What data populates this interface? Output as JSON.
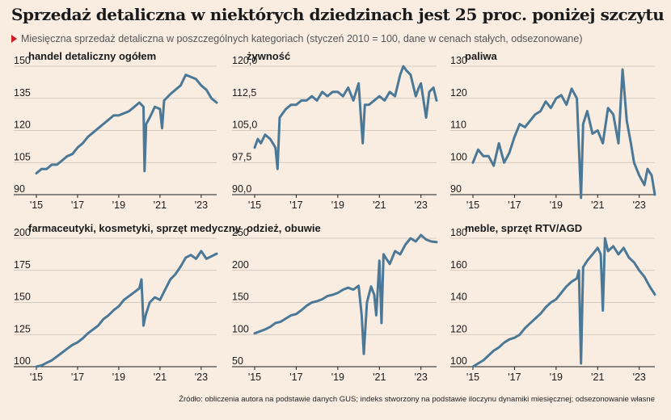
{
  "title": "Sprzedaż detaliczna w niektórych dziedzinach jest 25 proc. poniżej szczytu",
  "subtitle": "Miesięczna sprzedaż detaliczna w poszczególnych kategoriach (styczeń 2010 = 100, dane w cenach stałych, odsezonowane)",
  "source": "Źródło: obliczenia autora na podstawie danych GUS; indeks stworzony na podstawie iloczynu dynamiki miesięcznej; odsezonowanie własne",
  "colors": {
    "line": "#4a7896",
    "background": "#f9ede2",
    "accent": "#c8201e"
  },
  "chart_data": [
    {
      "type": "line",
      "title": "handel detaliczny ogółem",
      "x_tick_labels": [
        "'15",
        "'17",
        "'19",
        "'21",
        "'23"
      ],
      "x_ticks": [
        2015,
        2017,
        2019,
        2021,
        2023
      ],
      "xlim": [
        2015,
        2023.75
      ],
      "y_tick_labels": [
        "90",
        "105",
        "120",
        "135",
        "150"
      ],
      "y_ticks": [
        90,
        105,
        120,
        135,
        150
      ],
      "ylim": [
        90,
        150
      ],
      "x": [
        2015.0,
        2015.25,
        2015.5,
        2015.75,
        2016.0,
        2016.25,
        2016.5,
        2016.75,
        2017.0,
        2017.25,
        2017.5,
        2017.75,
        2018.0,
        2018.25,
        2018.5,
        2018.75,
        2019.0,
        2019.25,
        2019.5,
        2019.75,
        2020.0,
        2020.2,
        2020.25,
        2020.33,
        2020.5,
        2020.75,
        2021.0,
        2021.1,
        2021.2,
        2021.3,
        2021.5,
        2021.75,
        2022.0,
        2022.25,
        2022.5,
        2022.75,
        2023.0,
        2023.25,
        2023.5,
        2023.75
      ],
      "y": [
        100,
        102,
        102,
        104,
        104,
        106,
        108,
        109,
        112,
        114,
        117,
        119,
        121,
        123,
        125,
        127,
        127,
        128,
        129,
        131,
        133,
        131,
        101,
        123,
        126,
        131,
        130,
        121,
        134,
        135,
        137,
        139,
        141,
        146,
        145,
        144,
        141,
        139,
        135,
        133
      ]
    },
    {
      "type": "line",
      "title": "żywność",
      "x_tick_labels": [
        "'15",
        "'17",
        "'19",
        "'21",
        "'23"
      ],
      "x_ticks": [
        2015,
        2017,
        2019,
        2021,
        2023
      ],
      "xlim": [
        2015,
        2023.75
      ],
      "y_tick_labels": [
        "90,0",
        "97,5",
        "105,0",
        "112,5",
        "120,0"
      ],
      "y_ticks": [
        90,
        97.5,
        105,
        112.5,
        120
      ],
      "ylim": [
        90,
        120
      ],
      "x": [
        2015.0,
        2015.15,
        2015.3,
        2015.5,
        2015.75,
        2016.0,
        2016.1,
        2016.2,
        2016.35,
        2016.5,
        2016.75,
        2017.0,
        2017.25,
        2017.5,
        2017.75,
        2018.0,
        2018.25,
        2018.5,
        2018.75,
        2019.0,
        2019.25,
        2019.5,
        2019.75,
        2020.0,
        2020.1,
        2020.2,
        2020.3,
        2020.5,
        2020.75,
        2021.0,
        2021.25,
        2021.5,
        2021.75,
        2022.0,
        2022.15,
        2022.3,
        2022.5,
        2022.75,
        2022.9,
        2023.0,
        2023.25,
        2023.4,
        2023.6,
        2023.75
      ],
      "y": [
        101,
        103,
        102,
        104,
        103,
        101,
        96,
        108,
        109,
        110,
        111,
        111,
        112,
        112,
        113,
        112,
        114,
        113,
        114,
        114,
        113,
        115,
        112,
        116,
        109,
        102,
        111,
        111,
        112,
        113,
        112,
        114,
        113,
        118,
        120,
        119,
        118,
        113,
        115,
        116,
        108,
        114,
        115,
        112
      ]
    },
    {
      "type": "line",
      "title": "paliwa",
      "x_tick_labels": [
        "'15",
        "'17",
        "'19",
        "'21",
        "'23"
      ],
      "x_ticks": [
        2015,
        2017,
        2019,
        2021,
        2023
      ],
      "xlim": [
        2015,
        2023.75
      ],
      "y_tick_labels": [
        "90",
        "100",
        "110",
        "120",
        "130"
      ],
      "y_ticks": [
        90,
        100,
        110,
        120,
        130
      ],
      "ylim": [
        90,
        130
      ],
      "x": [
        2015.0,
        2015.25,
        2015.5,
        2015.75,
        2016.0,
        2016.25,
        2016.5,
        2016.75,
        2017.0,
        2017.25,
        2017.5,
        2017.75,
        2018.0,
        2018.25,
        2018.5,
        2018.75,
        2019.0,
        2019.25,
        2019.5,
        2019.75,
        2020.0,
        2020.2,
        2020.3,
        2020.5,
        2020.75,
        2021.0,
        2021.25,
        2021.5,
        2021.75,
        2022.0,
        2022.2,
        2022.4,
        2022.6,
        2022.75,
        2023.0,
        2023.25,
        2023.4,
        2023.6,
        2023.75
      ],
      "y": [
        100,
        104,
        102,
        102,
        99,
        106,
        100,
        103,
        108,
        112,
        111,
        113,
        115,
        116,
        119,
        117,
        120,
        121,
        118,
        123,
        120,
        89,
        112,
        116,
        109,
        110,
        106,
        117,
        115,
        106,
        129,
        113,
        106,
        100,
        96,
        93,
        98,
        96,
        90
      ]
    },
    {
      "type": "line",
      "title": "farmaceutyki, kosmetyki, sprzęt medyczny",
      "x_tick_labels": [
        "'15",
        "'17",
        "'19",
        "'21",
        "'23"
      ],
      "x_ticks": [
        2015,
        2017,
        2019,
        2021,
        2023
      ],
      "xlim": [
        2015,
        2023.75
      ],
      "y_tick_labels": [
        "100",
        "125",
        "150",
        "175",
        "200"
      ],
      "y_ticks": [
        100,
        125,
        150,
        175,
        200
      ],
      "ylim": [
        100,
        200
      ],
      "x": [
        2015.0,
        2015.25,
        2015.5,
        2015.75,
        2016.0,
        2016.25,
        2016.5,
        2016.75,
        2017.0,
        2017.25,
        2017.5,
        2017.75,
        2018.0,
        2018.25,
        2018.5,
        2018.75,
        2019.0,
        2019.25,
        2019.5,
        2019.75,
        2020.0,
        2020.1,
        2020.2,
        2020.3,
        2020.5,
        2020.75,
        2021.0,
        2021.25,
        2021.5,
        2021.75,
        2022.0,
        2022.25,
        2022.5,
        2022.75,
        2023.0,
        2023.25,
        2023.5,
        2023.75
      ],
      "y": [
        100,
        101,
        103,
        105,
        108,
        111,
        114,
        117,
        119,
        122,
        126,
        129,
        132,
        137,
        140,
        144,
        147,
        152,
        155,
        158,
        161,
        168,
        132,
        140,
        150,
        154,
        152,
        160,
        168,
        172,
        178,
        185,
        187,
        184,
        190,
        184,
        186,
        188
      ]
    },
    {
      "type": "line",
      "title": "odzież, obuwie",
      "x_tick_labels": [
        "'15",
        "'17",
        "'19",
        "'21",
        "'23"
      ],
      "x_ticks": [
        2015,
        2017,
        2019,
        2021,
        2023
      ],
      "xlim": [
        2015,
        2023.75
      ],
      "y_tick_labels": [
        "50",
        "100",
        "150",
        "200",
        "250"
      ],
      "y_ticks": [
        50,
        100,
        150,
        200,
        250
      ],
      "ylim": [
        50,
        250
      ],
      "x": [
        2015.0,
        2015.25,
        2015.5,
        2015.75,
        2016.0,
        2016.25,
        2016.5,
        2016.75,
        2017.0,
        2017.25,
        2017.5,
        2017.75,
        2018.0,
        2018.25,
        2018.5,
        2018.75,
        2019.0,
        2019.25,
        2019.5,
        2019.75,
        2020.0,
        2020.15,
        2020.25,
        2020.4,
        2020.6,
        2020.75,
        2020.85,
        2021.0,
        2021.1,
        2021.2,
        2021.5,
        2021.75,
        2022.0,
        2022.25,
        2022.5,
        2022.75,
        2023.0,
        2023.25,
        2023.5,
        2023.75
      ],
      "y": [
        102,
        105,
        108,
        112,
        118,
        120,
        125,
        130,
        132,
        138,
        145,
        150,
        152,
        155,
        160,
        162,
        165,
        170,
        173,
        170,
        176,
        130,
        70,
        150,
        175,
        162,
        130,
        215,
        118,
        225,
        210,
        230,
        225,
        240,
        250,
        245,
        255,
        248,
        245,
        244
      ]
    },
    {
      "type": "line",
      "title": "meble, sprzęt RTV/AGD",
      "x_tick_labels": [
        "'15",
        "'17",
        "'19",
        "'21",
        "'23"
      ],
      "x_ticks": [
        2015,
        2017,
        2019,
        2021,
        2023
      ],
      "xlim": [
        2015,
        2023.75
      ],
      "y_tick_labels": [
        "100",
        "120",
        "140",
        "160",
        "180"
      ],
      "y_ticks": [
        100,
        120,
        140,
        160,
        180
      ],
      "ylim": [
        100,
        180
      ],
      "x": [
        2015.0,
        2015.25,
        2015.5,
        2015.75,
        2016.0,
        2016.25,
        2016.5,
        2016.75,
        2017.0,
        2017.25,
        2017.5,
        2017.75,
        2018.0,
        2018.25,
        2018.5,
        2018.75,
        2019.0,
        2019.25,
        2019.5,
        2019.75,
        2020.0,
        2020.1,
        2020.2,
        2020.3,
        2020.5,
        2020.75,
        2021.0,
        2021.15,
        2021.25,
        2021.35,
        2021.5,
        2021.75,
        2022.0,
        2022.25,
        2022.5,
        2022.75,
        2023.0,
        2023.25,
        2023.5,
        2023.75
      ],
      "y": [
        100,
        102,
        104,
        107,
        110,
        112,
        115,
        117,
        118,
        120,
        124,
        127,
        130,
        133,
        137,
        140,
        142,
        146,
        150,
        153,
        155,
        160,
        102,
        162,
        166,
        170,
        174,
        170,
        135,
        180,
        172,
        175,
        170,
        174,
        168,
        165,
        160,
        156,
        150,
        145
      ]
    }
  ]
}
